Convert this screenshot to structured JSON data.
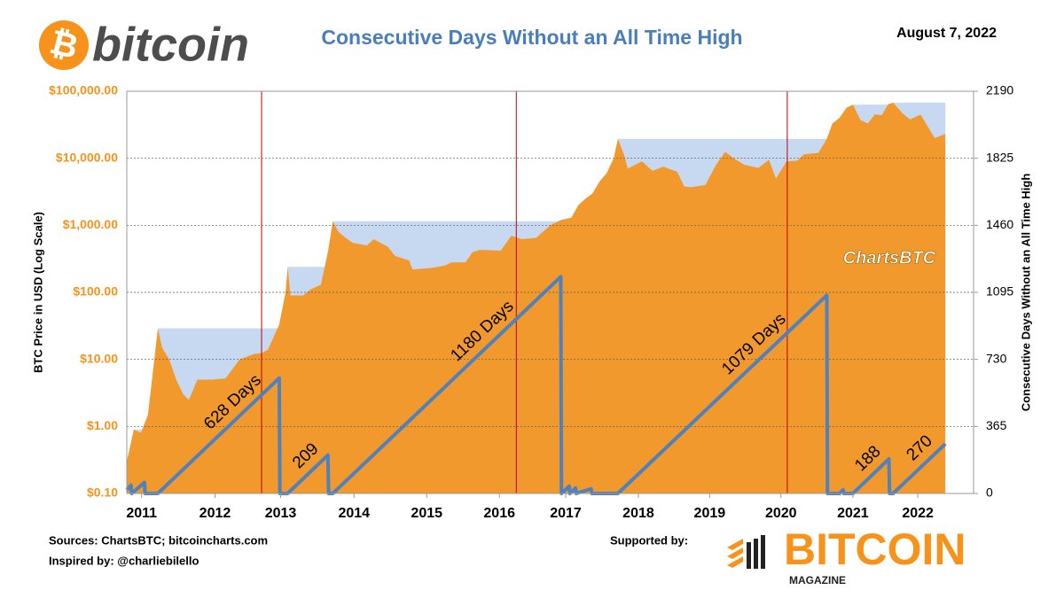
{
  "header": {
    "logo_text": "bitcoin",
    "date": "August 7, 2022"
  },
  "chart_data": {
    "type": "combo",
    "title": "Consecutive Days Without an All Time High",
    "y_label": "BTC Price in USD (Log Scale)",
    "y2_label": "Consecutive Days Without an All Time High",
    "watermark": "ChartsBTC",
    "log_scale": true,
    "grid": true,
    "xlim": [
      2011,
      2023
    ],
    "xticks": [
      {
        "value": 2011.21,
        "label": "2011"
      },
      {
        "value": 2012.25,
        "label": "2012"
      },
      {
        "value": 2013.18,
        "label": "2013"
      },
      {
        "value": 2014.22,
        "label": "2014"
      },
      {
        "value": 2015.25,
        "label": "2015"
      },
      {
        "value": 2016.28,
        "label": "2016"
      },
      {
        "value": 2017.22,
        "label": "2017"
      },
      {
        "value": 2018.25,
        "label": "2018"
      },
      {
        "value": 2019.26,
        "label": "2019"
      },
      {
        "value": 2020.27,
        "label": "2020"
      },
      {
        "value": 2021.29,
        "label": "2021"
      },
      {
        "value": 2022.21,
        "label": "2022"
      }
    ],
    "ylim": [
      0.1,
      100000
    ],
    "yticks": [
      {
        "value": 0.1,
        "label": "$0.10"
      },
      {
        "value": 1,
        "label": "$1.00"
      },
      {
        "value": 10,
        "label": "$10.00"
      },
      {
        "value": 100,
        "label": "$100.00"
      },
      {
        "value": 1000,
        "label": "$1,000.00"
      },
      {
        "value": 10000,
        "label": "$10,000.00"
      },
      {
        "value": 100000,
        "label": "$100,000.00"
      }
    ],
    "y2lim": [
      0,
      2190
    ],
    "y2ticks": [
      0,
      365,
      730,
      1095,
      1460,
      1825,
      2190
    ],
    "ath_color": "#c6d9f1",
    "halvings": {
      "color": "#c00000",
      "x": [
        2012.91,
        2016.52,
        2020.36
      ]
    },
    "series": [
      {
        "color": "#f2992e",
        "x": [
          2011.0,
          2011.1,
          2011.2,
          2011.3,
          2011.38,
          2011.44,
          2011.5,
          2011.6,
          2011.7,
          2011.8,
          2011.88,
          2012.0,
          2012.2,
          2012.4,
          2012.6,
          2012.8,
          2012.92,
          2013.0,
          2013.16,
          2013.25,
          2013.28,
          2013.32,
          2013.5,
          2013.6,
          2013.75,
          2013.85,
          2013.92,
          2014.0,
          2014.1,
          2014.2,
          2014.4,
          2014.5,
          2014.7,
          2014.8,
          2015.0,
          2015.05,
          2015.3,
          2015.5,
          2015.6,
          2015.8,
          2015.9,
          2016.0,
          2016.3,
          2016.45,
          2016.6,
          2016.8,
          2017.0,
          2017.15,
          2017.3,
          2017.4,
          2017.5,
          2017.6,
          2017.7,
          2017.8,
          2017.9,
          2017.96,
          2018.05,
          2018.1,
          2018.3,
          2018.45,
          2018.6,
          2018.8,
          2018.9,
          2019.0,
          2019.2,
          2019.35,
          2019.48,
          2019.6,
          2019.75,
          2019.95,
          2020.1,
          2020.2,
          2020.35,
          2020.5,
          2020.6,
          2020.8,
          2020.92,
          2021.0,
          2021.1,
          2021.2,
          2021.29,
          2021.4,
          2021.5,
          2021.6,
          2021.7,
          2021.79,
          2021.86,
          2022.0,
          2022.1,
          2022.25,
          2022.35,
          2022.45,
          2022.55,
          2022.6
        ],
        "values": [
          0.3,
          0.9,
          0.8,
          1.5,
          8,
          29,
          15,
          10,
          5,
          3,
          2.5,
          5,
          5,
          5.2,
          10,
          12,
          12.5,
          14,
          33,
          100,
          240,
          90,
          90,
          110,
          130,
          400,
          1150,
          800,
          650,
          550,
          500,
          620,
          480,
          350,
          300,
          220,
          230,
          250,
          280,
          280,
          400,
          430,
          420,
          700,
          620,
          650,
          1000,
          1200,
          1300,
          2000,
          2500,
          3000,
          4500,
          6000,
          10000,
          19500,
          11000,
          7000,
          9000,
          6500,
          7500,
          6300,
          3800,
          3700,
          4000,
          8000,
          12500,
          10000,
          8000,
          7200,
          9500,
          5000,
          9000,
          9200,
          11500,
          12000,
          19500,
          33000,
          40000,
          57000,
          63000,
          37000,
          33000,
          45000,
          44000,
          64000,
          67500,
          46000,
          38000,
          45000,
          30000,
          20000,
          22000,
          23000
        ]
      },
      {
        "color": "#4f81bd",
        "axis": "y2",
        "x": [
          2011.0,
          2011.06,
          2011.07,
          2011.25,
          2011.26,
          2011.44,
          2013.16,
          2013.17,
          2013.28,
          2013.85,
          2013.86,
          2013.92,
          2017.15,
          2017.16,
          2017.27,
          2017.28,
          2017.36,
          2017.37,
          2017.58,
          2017.59,
          2017.96,
          2020.92,
          2020.93,
          2021.1,
          2021.15,
          2021.16,
          2021.29,
          2021.8,
          2021.81,
          2021.86,
          2022.6
        ],
        "values": [
          20,
          45,
          0,
          60,
          0,
          0,
          628,
          0,
          0,
          209,
          0,
          0,
          1180,
          0,
          40,
          0,
          30,
          0,
          25,
          0,
          0,
          1079,
          0,
          0,
          20,
          0,
          0,
          188,
          0,
          0,
          270
        ],
        "value_labels": [
          null,
          null,
          null,
          null,
          null,
          null,
          "628 Days",
          null,
          null,
          "209",
          null,
          null,
          "1180 Days",
          null,
          null,
          null,
          null,
          null,
          null,
          null,
          null,
          "1079 Days",
          null,
          null,
          null,
          null,
          null,
          "188",
          null,
          null,
          "270"
        ]
      }
    ]
  },
  "footer": {
    "sources": "Sources:  ChartsBTC; bitcoincharts.com",
    "inspired": "Inspired by: @charliebilello",
    "supported": "Supported by:",
    "brand": "BITCOIN",
    "brand_sub": "MAGAZINE"
  }
}
